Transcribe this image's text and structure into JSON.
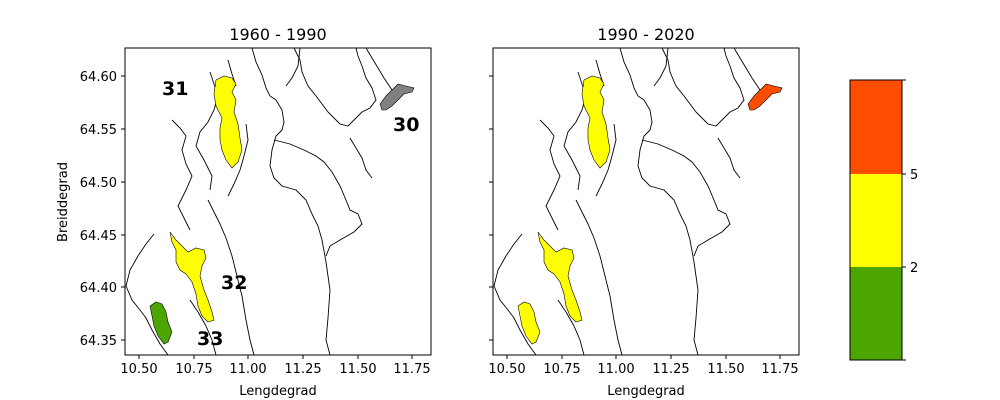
{
  "chart_data": {
    "type": "map",
    "panels": [
      {
        "title": "1960 - 1990",
        "xlabel": "Lengdegrad",
        "ylabel": "Breiddegrad",
        "xlim": [
          10.43,
          11.87
        ],
        "ylim": [
          64.334,
          64.626
        ],
        "xticks": [
          "10.50",
          "10.75",
          "11.00",
          "11.25",
          "11.50",
          "11.75"
        ],
        "yticks": [
          "64.35",
          "64.40",
          "64.45",
          "64.50",
          "64.55",
          "64.60"
        ],
        "regions": [
          {
            "id": "30",
            "class": "none",
            "label": "30"
          },
          {
            "id": "31",
            "class": "2-5",
            "label": "31"
          },
          {
            "id": "32",
            "class": "2-5",
            "label": "32"
          },
          {
            "id": "33",
            "class": "<2",
            "label": "33"
          }
        ]
      },
      {
        "title": "1990 - 2020",
        "xlabel": "Lengdegrad",
        "ylabel": "",
        "xlim": [
          10.43,
          11.87
        ],
        "ylim": [
          64.334,
          64.626
        ],
        "xticks": [
          "10.50",
          "10.75",
          "11.00",
          "11.25",
          "11.50",
          "11.75"
        ],
        "yticks": [
          "",
          "",
          "",
          "",
          "",
          ""
        ],
        "regions": [
          {
            "id": "30",
            "class": ">5"
          },
          {
            "id": "31",
            "class": "2-5"
          },
          {
            "id": "32",
            "class": "2-5"
          },
          {
            "id": "33",
            "class": "2-5"
          }
        ]
      }
    ],
    "colorbar": {
      "bins": [
        {
          "color": "#4da500",
          "range": "<2"
        },
        {
          "color": "#ffff00",
          "range": "2-5"
        },
        {
          "color": "#ff4d00",
          "range": ">5"
        }
      ],
      "tick_labels": [
        "2",
        "5"
      ]
    },
    "colors": {
      "no_data": "#808080"
    }
  }
}
